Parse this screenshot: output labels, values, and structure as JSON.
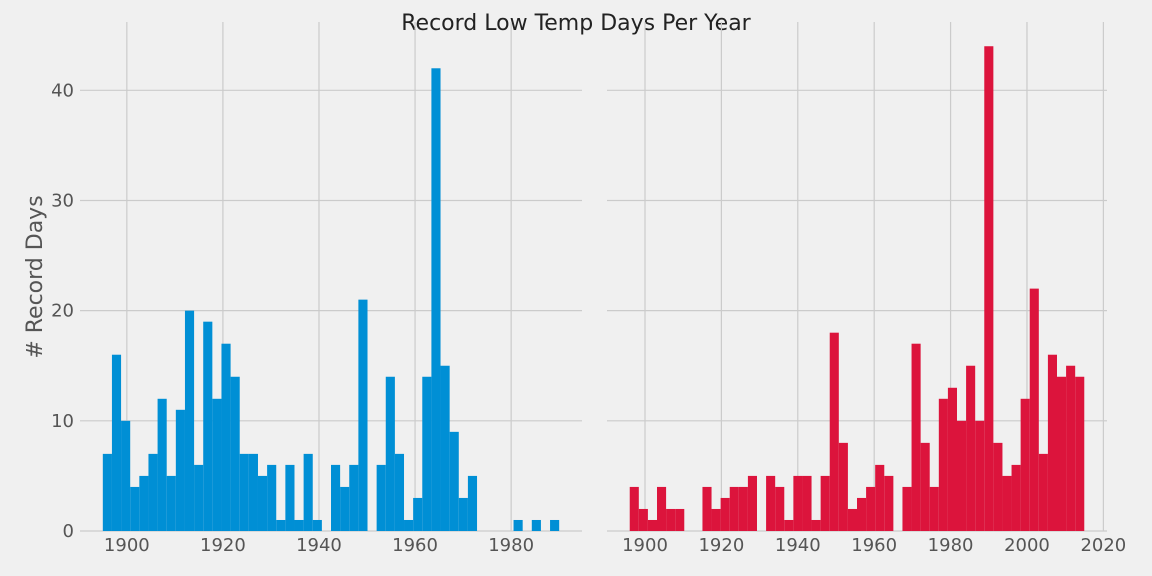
{
  "title": "Record Low Temp Days Per Year",
  "ylabel": "# Record Days",
  "chart_data": [
    {
      "type": "histogram",
      "color": "#008fd5",
      "grid": true,
      "show_ytick_labels": true,
      "bins": [
        1895,
        1896.9,
        1898.8,
        1900.7,
        1902.6,
        1904.5,
        1906.4,
        1908.3,
        1910.2,
        1912.1,
        1914,
        1915.9,
        1917.8,
        1919.7,
        1921.6,
        1923.5,
        1925.4,
        1927.3,
        1929.2,
        1931.1,
        1933,
        1934.9,
        1936.8,
        1938.7,
        1940.6,
        1942.5,
        1944.4,
        1946.3,
        1948.2,
        1950.1,
        1952,
        1953.9,
        1955.8,
        1957.7,
        1959.6,
        1961.5,
        1963.4,
        1965.3,
        1967.2,
        1969.1,
        1971,
        1972.9,
        1974.8,
        1976.7,
        1978.6,
        1980.5,
        1982.4,
        1984.3,
        1986.2,
        1988.1,
        1990
      ],
      "values": [
        7,
        16,
        10,
        4,
        5,
        7,
        12,
        5,
        11,
        20,
        6,
        19,
        12,
        17,
        14,
        7,
        7,
        5,
        6,
        1,
        6,
        1,
        7,
        1,
        0,
        6,
        4,
        6,
        21,
        0,
        6,
        14,
        7,
        1,
        3,
        14,
        42,
        15,
        9,
        3,
        5,
        0,
        0,
        0,
        0,
        1,
        0,
        1,
        0,
        1
      ],
      "xlim": [
        1890.25,
        1994.75
      ],
      "xticks": [
        1900,
        1920,
        1940,
        1960,
        1980
      ],
      "ylim": [
        0,
        46.2
      ],
      "yticks": [
        0,
        10,
        20,
        30,
        40
      ]
    },
    {
      "type": "histogram",
      "color": "#dc143c",
      "grid": true,
      "show_ytick_labels": false,
      "bins": [
        1896,
        1898.38,
        1900.76,
        1903.14,
        1905.52,
        1907.9,
        1910.28,
        1912.66,
        1915.04,
        1917.42,
        1919.8,
        1922.18,
        1924.56,
        1926.94,
        1929.32,
        1931.7,
        1934.08,
        1936.46,
        1938.84,
        1941.22,
        1943.6,
        1945.98,
        1948.36,
        1950.74,
        1953.12,
        1955.5,
        1957.88,
        1960.26,
        1962.64,
        1965.02,
        1967.4,
        1969.78,
        1972.16,
        1974.54,
        1976.92,
        1979.3,
        1981.68,
        1984.06,
        1986.44,
        1988.82,
        1991.2,
        1993.58,
        1995.96,
        1998.34,
        2000.72,
        2003.1,
        2005.48,
        2007.86,
        2010.24,
        2012.62,
        2015
      ],
      "values": [
        4,
        2,
        1,
        4,
        2,
        2,
        0,
        0,
        4,
        2,
        3,
        4,
        4,
        5,
        0,
        5,
        4,
        1,
        5,
        5,
        1,
        5,
        18,
        8,
        2,
        3,
        4,
        6,
        5,
        0,
        4,
        17,
        8,
        4,
        12,
        13,
        10,
        15,
        10,
        44,
        8,
        5,
        6,
        12,
        22,
        7,
        16,
        14,
        15,
        14
      ],
      "xlim": [
        1890.05,
        2020.95
      ],
      "xticks": [
        1900,
        1920,
        1940,
        1960,
        1980,
        2000,
        2020
      ],
      "ylim": [
        0,
        46.2
      ],
      "yticks": [
        0,
        10,
        20,
        30,
        40
      ]
    }
  ]
}
